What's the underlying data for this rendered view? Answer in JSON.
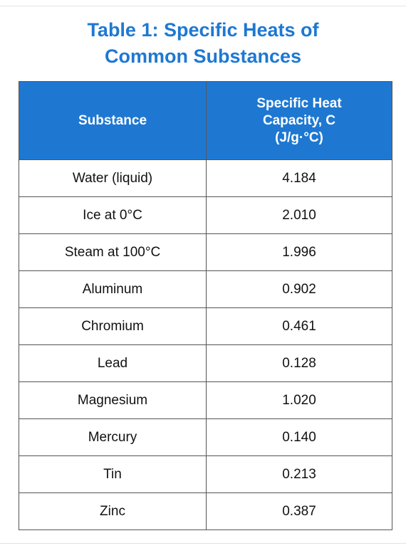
{
  "title": "Table 1: Specific Heats of Common Substances",
  "table": {
    "header": [
      "Substance",
      "Specific Heat Capacity, C (J/g·°C)"
    ],
    "rows": [
      [
        "Water (liquid)",
        "4.184"
      ],
      [
        "Ice at 0°C",
        "2.010"
      ],
      [
        "Steam at 100°C",
        "1.996"
      ],
      [
        "Aluminum",
        "0.902"
      ],
      [
        "Chromium",
        "0.461"
      ],
      [
        "Lead",
        "0.128"
      ],
      [
        "Magnesium",
        "1.020"
      ],
      [
        "Mercury",
        "0.140"
      ],
      [
        "Tin",
        "0.213"
      ],
      [
        "Zinc",
        "0.387"
      ]
    ]
  }
}
